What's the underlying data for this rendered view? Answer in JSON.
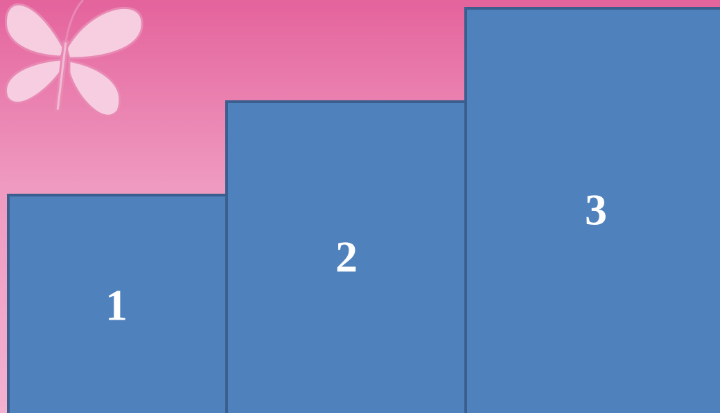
{
  "blocks": [
    {
      "label": "1"
    },
    {
      "label": "2"
    },
    {
      "label": "3"
    }
  ]
}
